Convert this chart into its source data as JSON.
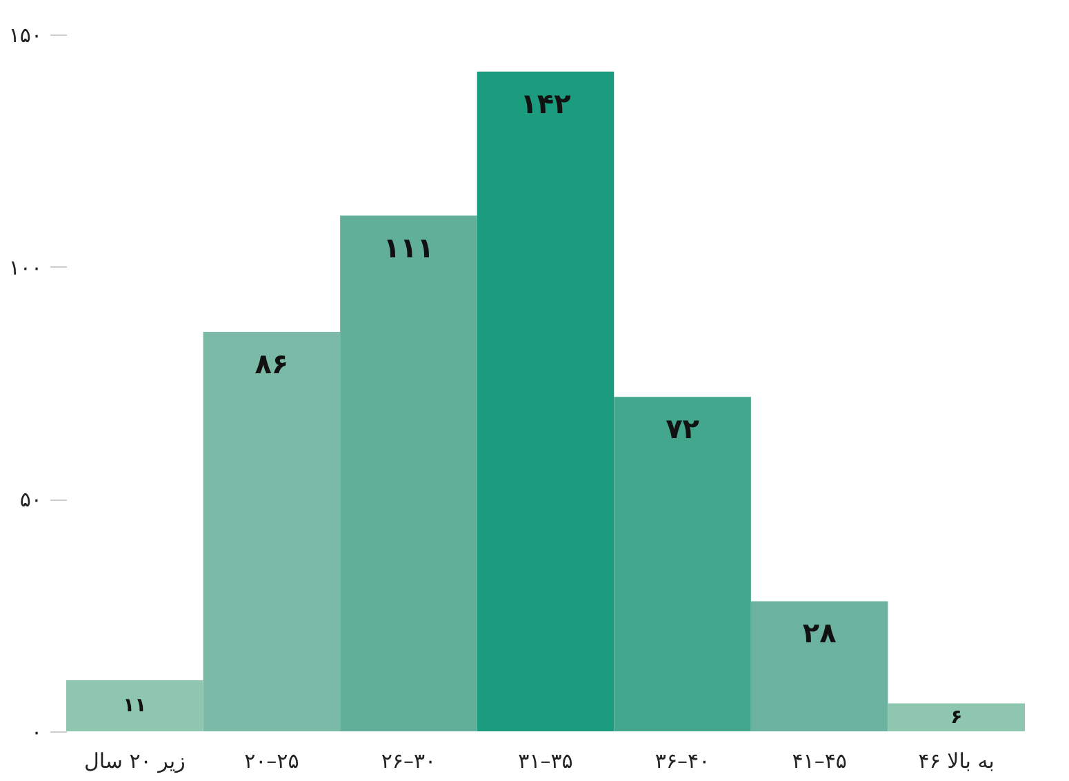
{
  "chart_data": {
    "type": "bar",
    "categories": [
      "زیر ۲۰ سال",
      "۲۰–۲۵",
      "۲۶–۳۰",
      "۳۱–۳۵",
      "۳۶–۴۰",
      "۴۱–۴۵",
      "۴۶ به بالا"
    ],
    "values": [
      11,
      86,
      111,
      142,
      72,
      28,
      6
    ],
    "colors": [
      "#8ec6b0",
      "#7bbaa6",
      "#61af98",
      "#1c9c7f",
      "#42a78c",
      "#6bb3a0",
      "#8ec6b0"
    ],
    "value_labels": [
      "۱۱",
      "۸۶",
      "۱۱۱",
      "۱۴۲",
      "۷۲",
      "۲۸",
      "۶"
    ],
    "ylim": [
      0,
      150
    ],
    "yticks": [
      {
        "value": 0,
        "label": "۰"
      },
      {
        "value": 50,
        "label": "۵۰"
      },
      {
        "value": 100,
        "label": "۱۰۰"
      },
      {
        "value": 150,
        "label": "۱۵۰"
      }
    ],
    "grid": false
  }
}
